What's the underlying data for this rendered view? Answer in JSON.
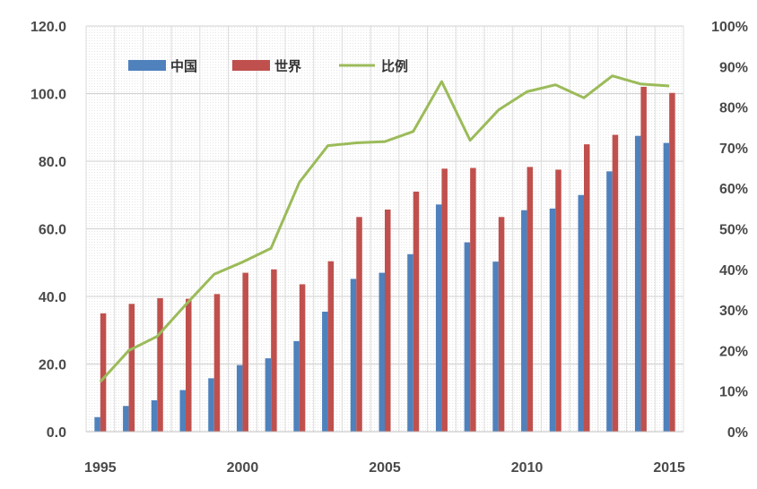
{
  "chart_data": {
    "type": "bar",
    "x": [
      1995,
      1996,
      1997,
      1998,
      1999,
      2000,
      2001,
      2002,
      2003,
      2004,
      2005,
      2006,
      2007,
      2008,
      2009,
      2010,
      2011,
      2012,
      2013,
      2014,
      2015
    ],
    "x_ticks": [
      1995,
      2000,
      2005,
      2010,
      2015
    ],
    "x_tick_labels": [
      "1995",
      "2000",
      "2005",
      "2010",
      "2015"
    ],
    "series": [
      {
        "name": "中国",
        "type": "bar",
        "axis": "left",
        "color": "#4f81bd",
        "values": [
          4.3,
          7.6,
          9.3,
          12.3,
          15.8,
          19.7,
          21.7,
          26.8,
          35.5,
          45.2,
          47.0,
          52.5,
          67.2,
          56.0,
          50.3,
          65.5,
          66.0,
          70.0,
          77.0,
          87.5,
          85.4
        ]
      },
      {
        "name": "世界",
        "type": "bar",
        "axis": "left",
        "color": "#c0504d",
        "values": [
          35.0,
          37.8,
          39.5,
          39.3,
          40.7,
          47.0,
          48.0,
          43.6,
          50.4,
          63.5,
          65.7,
          71.0,
          77.8,
          78.0,
          63.5,
          78.3,
          77.5,
          85.0,
          87.8,
          102.0,
          100.2
        ]
      },
      {
        "name": "比例",
        "type": "line",
        "axis": "right",
        "color": "#9bbb59",
        "values": [
          0.123,
          0.2,
          0.235,
          0.313,
          0.388,
          0.418,
          0.452,
          0.615,
          0.705,
          0.712,
          0.715,
          0.74,
          0.863,
          0.718,
          0.793,
          0.838,
          0.855,
          0.823,
          0.877,
          0.857,
          0.852
        ]
      }
    ],
    "y_left": {
      "ylim": [
        0,
        120
      ],
      "ticks": [
        0,
        20,
        40,
        60,
        80,
        100,
        120
      ],
      "tick_labels": [
        "0.0",
        "20.0",
        "40.0",
        "60.0",
        "80.0",
        "100.0",
        "120.0"
      ]
    },
    "y_right": {
      "ylim": [
        0,
        1
      ],
      "ticks": [
        0,
        0.1,
        0.2,
        0.3,
        0.4,
        0.5,
        0.6,
        0.7,
        0.8,
        0.9,
        1.0
      ],
      "tick_labels": [
        "0%",
        "10%",
        "20%",
        "30%",
        "40%",
        "50%",
        "60%",
        "70%",
        "80%",
        "90%",
        "100%"
      ]
    },
    "grid": true,
    "legend_position": "top-left",
    "title": "",
    "xlabel": "",
    "ylabel": ""
  }
}
